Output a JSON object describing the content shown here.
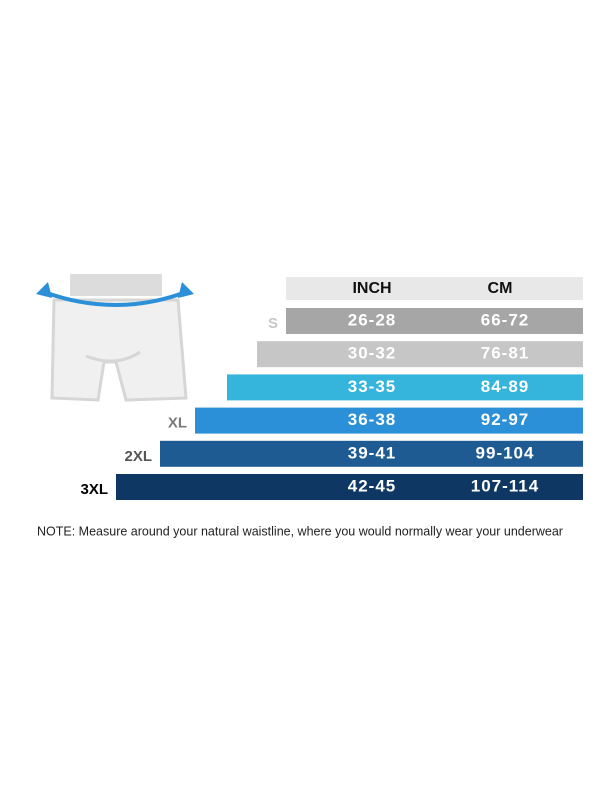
{
  "table": {
    "header": [
      "INCH",
      "CM"
    ],
    "rows": [
      {
        "size": "S",
        "inch": "26-28",
        "cm": "66-72",
        "color": "#a6a6a6",
        "label_color": "#c8c8c8"
      },
      {
        "size": null,
        "inch": "30-32",
        "cm": "76-81",
        "color": "#c6c6c6",
        "label_color": "#c8c8c8"
      },
      {
        "size": null,
        "inch": "33-35",
        "cm": "84-89",
        "color": "#35b5db",
        "label_color": "#c8c8c8"
      },
      {
        "size": "XL",
        "inch": "36-38",
        "cm": "92-97",
        "color": "#2c90d8",
        "label_color": "#7a7a7a"
      },
      {
        "size": "2XL",
        "inch": "39-41",
        "cm": "99-104",
        "color": "#1f5b93",
        "label_color": "#555555"
      },
      {
        "size": "3XL",
        "inch": "42-45",
        "cm": "107-114",
        "color": "#0e3863",
        "label_color": "#000000"
      }
    ]
  },
  "note": "NOTE: Measure around your natural waistline, where you would normally wear your underwear"
}
